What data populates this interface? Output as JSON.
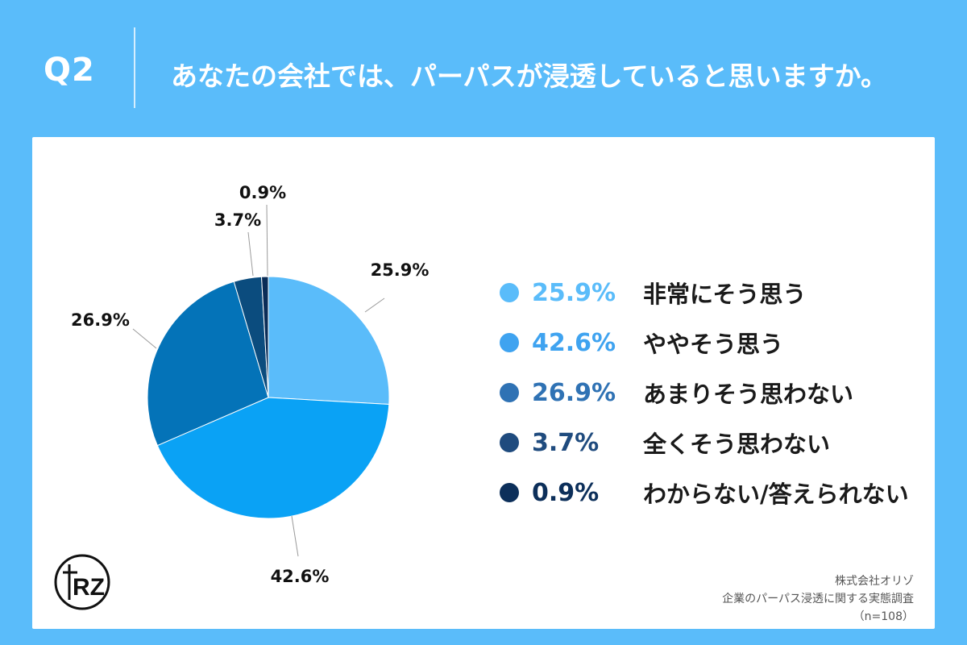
{
  "header": {
    "q_label": "Q2",
    "question": "あなたの会社では、パーパスが浸透していると思いますか。"
  },
  "chart_data": {
    "type": "pie",
    "title": "",
    "slices": [
      {
        "label": "非常にそう思う",
        "value": 25.9,
        "display": "25.9%",
        "color": "#5ABCFA"
      },
      {
        "label": "ややそう思う",
        "value": 42.6,
        "display": "42.6%",
        "color": "#0AA2F5"
      },
      {
        "label": "あまりそう思わない",
        "value": 26.9,
        "display": "26.9%",
        "color": "#0473B8"
      },
      {
        "label": "全くそう思わない",
        "value": 3.7,
        "display": "3.7%",
        "color": "#0B4C7E"
      },
      {
        "label": "わからない/答えられない",
        "value": 0.9,
        "display": "0.9%",
        "color": "#0A2C57"
      }
    ],
    "start": "top",
    "direction": "clockwise",
    "legend_position": "right"
  },
  "legend": {
    "items": [
      {
        "pct": "25.9%",
        "label": "非常にそう思う",
        "color": "#5ABCFA",
        "text_color": "#5ABCFA"
      },
      {
        "pct": "42.6%",
        "label": "ややそう思う",
        "color": "#3FA3F0",
        "text_color": "#3FA3F0"
      },
      {
        "pct": "26.9%",
        "label": "あまりそう思わない",
        "color": "#2F72B4",
        "text_color": "#2F72B4"
      },
      {
        "pct": "3.7%",
        "label": "全くそう思わない",
        "color": "#1F4B7E",
        "text_color": "#1F4B7E"
      },
      {
        "pct": "0.9%",
        "label": "わからない/答えられない",
        "color": "#0C2F5A",
        "text_color": "#0C2F5A"
      }
    ]
  },
  "source": {
    "line1": "株式会社オリゾ",
    "line2": "企業のパーパス浸透に関する実態調査",
    "line3": "（n=108）"
  },
  "logo": {
    "text": "RZ"
  }
}
